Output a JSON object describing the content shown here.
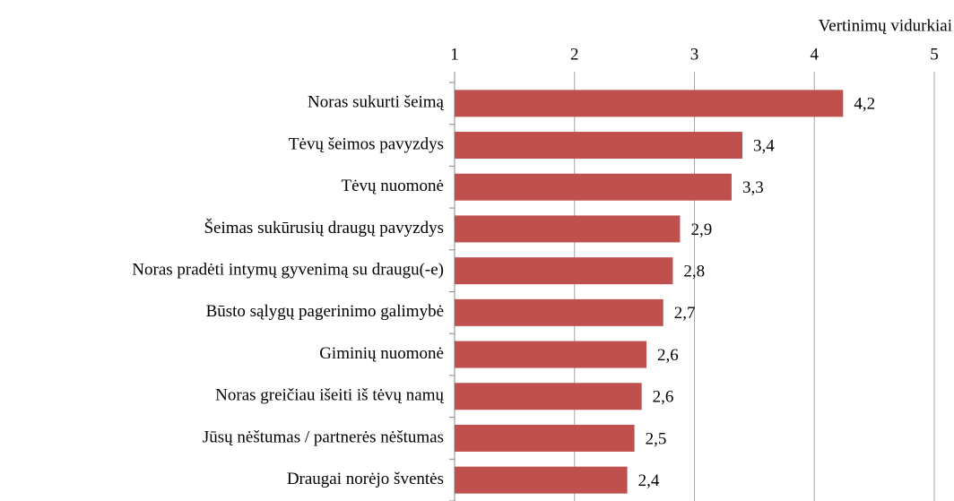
{
  "chart_data": {
    "type": "hbar",
    "xlabel": "Vertinimų vidurkiai",
    "categories": [
      "Noras sukurti šeimą",
      "Tėvų šeimos pavyzdys",
      "Tėvų nuomonė",
      "Šeimas sukūrusių draugų pavyzdys",
      "Noras pradėti intymų gyvenimą su draugu(-e)",
      "Būsto sąlygų pagerinimo galimybė",
      "Giminių nuomonė",
      "Noras greičiau išeiti iš tėvų namų",
      "Jūsų nėštumas / partnerės nėštumas",
      "Draugai norėjo šventės"
    ],
    "values": [
      4.24,
      3.4,
      3.31,
      2.88,
      2.82,
      2.74,
      2.6,
      2.56,
      2.5,
      2.44
    ],
    "value_labels": [
      "4,2",
      "3,4",
      "3,3",
      "2,9",
      "2,8",
      "2,7",
      "2,6",
      "2,6",
      "2,5",
      "2,4"
    ],
    "color": "#c0504d",
    "xlim": [
      1,
      5
    ],
    "xticks": [
      1,
      2,
      3,
      4,
      5
    ],
    "grid": true
  }
}
